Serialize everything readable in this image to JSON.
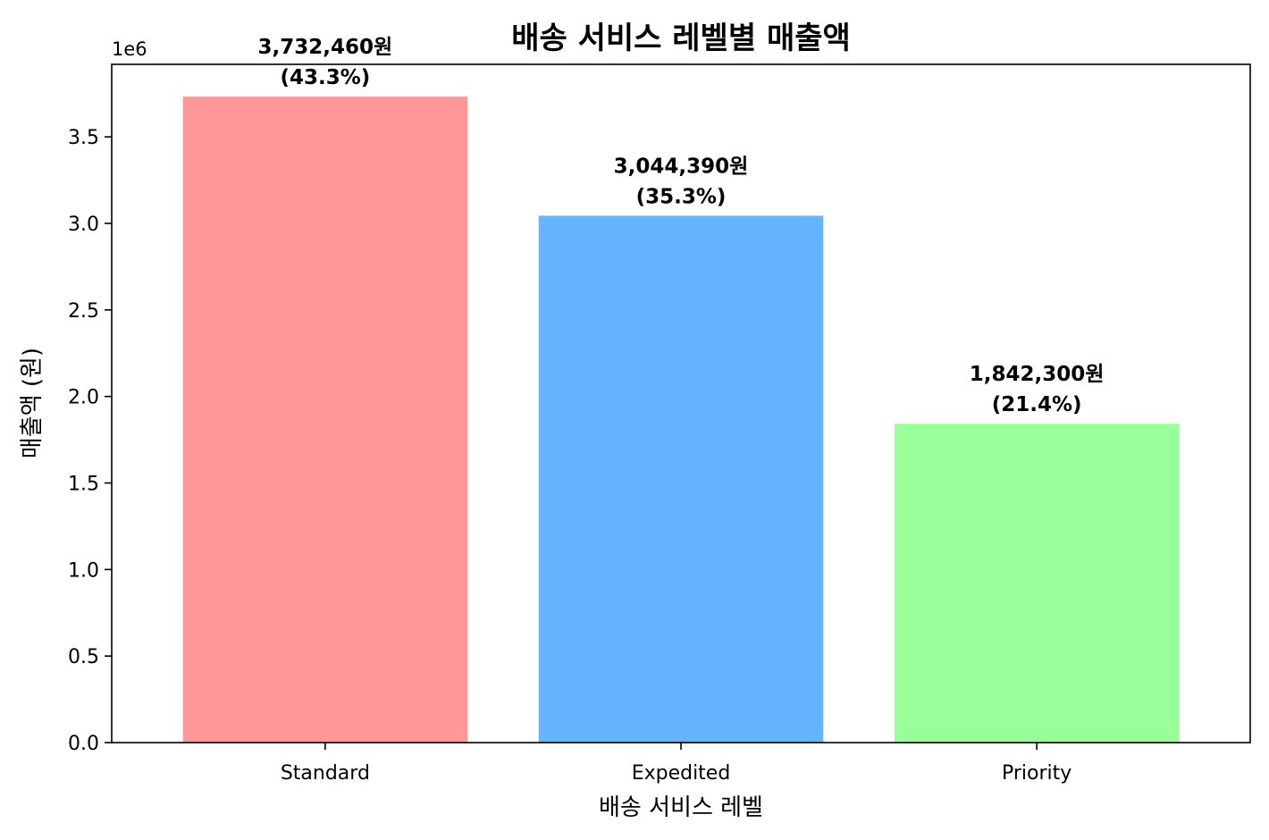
{
  "chart_data": {
    "type": "bar",
    "title": "배송 서비스 레벨별 매출액",
    "xlabel": "배송 서비스 레벨",
    "ylabel": "매출액 (원)",
    "y_offset_label": "1e6",
    "y_scale": 1000000,
    "ylim": [
      0,
      3.919083
    ],
    "yticks": [
      0,
      0.5,
      1.0,
      1.5,
      2.0,
      2.5,
      3.0,
      3.5
    ],
    "ytick_labels": [
      "0.0",
      "0.5",
      "1.0",
      "1.5",
      "2.0",
      "2.5",
      "3.0",
      "3.5"
    ],
    "grid": false,
    "categories": [
      "Standard",
      "Expedited",
      "Priority"
    ],
    "values": [
      3732460,
      3044390,
      1842300
    ],
    "value_labels": [
      "3,732,460원",
      "3,044,390원",
      "1,842,300원"
    ],
    "percent_labels": [
      "(43.3%)",
      "(35.3%)",
      "(21.4%)"
    ],
    "colors": [
      "#ff9999",
      "#66b3ff",
      "#99ff99"
    ]
  }
}
